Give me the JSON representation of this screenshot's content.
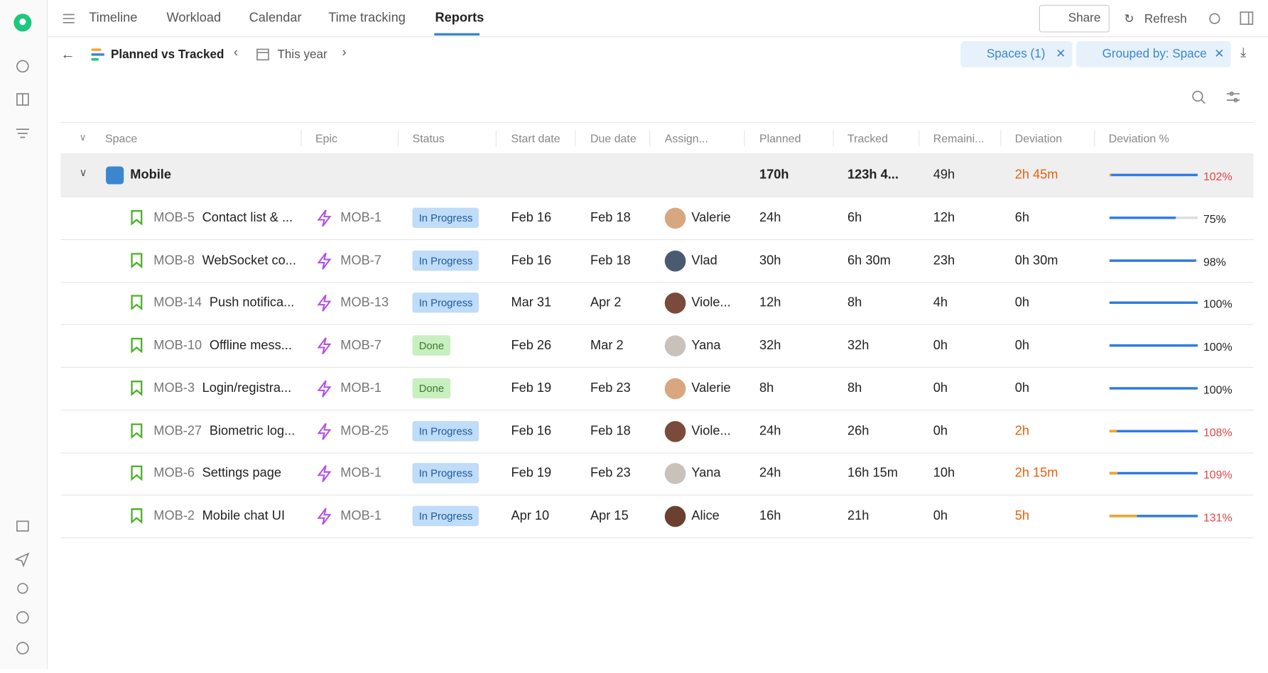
{
  "nav": {
    "tabs": [
      "Timeline",
      "Workload",
      "Calendar",
      "Time tracking",
      "Reports"
    ],
    "share": "Share",
    "refresh": "Refresh"
  },
  "toolbar": {
    "report": "Planned vs Tracked",
    "period": "This year",
    "filters": [
      "Spaces (1)",
      "Grouped by: Space"
    ]
  },
  "table": {
    "columns": [
      "Space",
      "Epic",
      "Status",
      "Start date",
      "Due date",
      "Assign...",
      "Planned",
      "Tracked",
      "Remaini...",
      "Deviation",
      "Deviation %"
    ],
    "group": {
      "name": "Mobile",
      "planned": "170h",
      "tracked": "123h 4...",
      "remaining": "49h",
      "deviation": "2h 45m",
      "deviation_pct": "102%"
    },
    "rows": [
      {
        "key": "MOB-5",
        "name": "Contact list & ...",
        "epic": "MOB-1",
        "status": "In Progress",
        "start": "Feb 16",
        "due": "Feb 18",
        "assignee": "Valerie",
        "planned": "24h",
        "tracked": "6h",
        "remaining": "12h",
        "deviation": "6h",
        "deviation_pct": "75%"
      },
      {
        "key": "MOB-8",
        "name": "WebSocket co...",
        "epic": "MOB-7",
        "status": "In Progress",
        "start": "Feb 16",
        "due": "Feb 18",
        "assignee": "Vlad",
        "planned": "30h",
        "tracked": "6h 30m",
        "remaining": "23h",
        "deviation": "0h 30m",
        "deviation_pct": "98%"
      },
      {
        "key": "MOB-14",
        "name": "Push notifica...",
        "epic": "MOB-13",
        "status": "In Progress",
        "start": "Mar 31",
        "due": "Apr 2",
        "assignee": "Viole...",
        "planned": "12h",
        "tracked": "8h",
        "remaining": "4h",
        "deviation": "0h",
        "deviation_pct": "100%"
      },
      {
        "key": "MOB-10",
        "name": "Offline mess...",
        "epic": "MOB-7",
        "status": "Done",
        "start": "Feb 26",
        "due": "Mar 2",
        "assignee": "Yana",
        "planned": "32h",
        "tracked": "32h",
        "remaining": "0h",
        "deviation": "0h",
        "deviation_pct": "100%"
      },
      {
        "key": "MOB-3",
        "name": "Login/registra...",
        "epic": "MOB-1",
        "status": "Done",
        "start": "Feb 19",
        "due": "Feb 23",
        "assignee": "Valerie",
        "planned": "8h",
        "tracked": "8h",
        "remaining": "0h",
        "deviation": "0h",
        "deviation_pct": "100%"
      },
      {
        "key": "MOB-27",
        "name": "Biometric log...",
        "epic": "MOB-25",
        "status": "In Progress",
        "start": "Feb 16",
        "due": "Feb 18",
        "assignee": "Viole...",
        "planned": "24h",
        "tracked": "26h",
        "remaining": "0h",
        "deviation": "2h",
        "deviation_pct": "108%"
      },
      {
        "key": "MOB-6",
        "name": "Settings page",
        "epic": "MOB-1",
        "status": "In Progress",
        "start": "Feb 19",
        "due": "Feb 23",
        "assignee": "Yana",
        "planned": "24h",
        "tracked": "16h 15m",
        "remaining": "10h",
        "deviation": "2h 15m",
        "deviation_pct": "109%"
      },
      {
        "key": "MOB-2",
        "name": "Mobile chat UI",
        "epic": "MOB-1",
        "status": "In Progress",
        "start": "Apr 10",
        "due": "Apr 15",
        "assignee": "Alice",
        "planned": "16h",
        "tracked": "21h",
        "remaining": "0h",
        "deviation": "5h",
        "deviation_pct": "131%"
      }
    ]
  }
}
